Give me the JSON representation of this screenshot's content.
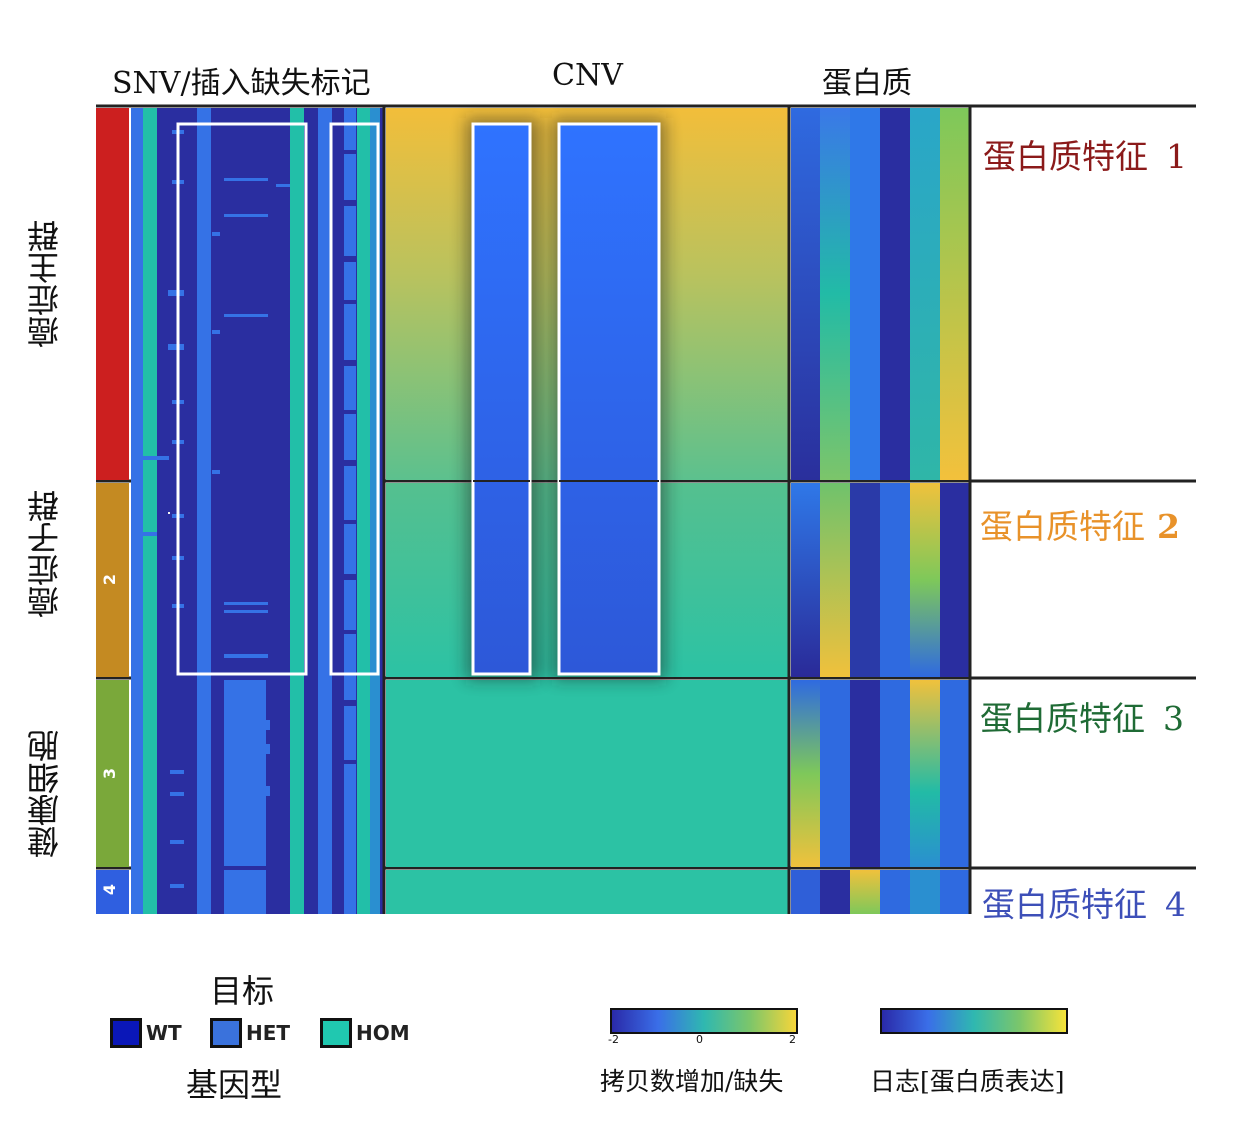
{
  "headers": {
    "snv": "SNV/插入缺失标记",
    "cnv": "CNV",
    "protein": "蛋白质"
  },
  "row_labels": {
    "main": "癌症主群",
    "sub": "癌症子群",
    "healthy": "健康细胞"
  },
  "groups": [
    {
      "number": "",
      "color": "#cc1f1f"
    },
    {
      "number": "2",
      "color": "#c48a22"
    },
    {
      "number": "3",
      "color": "#7aa83a"
    },
    {
      "number": "4",
      "color": "#2f5fe0"
    }
  ],
  "signatures": [
    {
      "prefix": "蛋白质特征",
      "num": "1",
      "color": "#8b1a1a"
    },
    {
      "prefix": "蛋白质特征",
      "num": "2",
      "color": "#e8922a"
    },
    {
      "prefix": "蛋白质特征",
      "num": "3",
      "color": "#1f6b35"
    },
    {
      "prefix": "蛋白质特征",
      "num": "4",
      "color": "#3d4fb8"
    }
  ],
  "legend": {
    "target": "目标",
    "genotype": "基因型",
    "items": [
      {
        "label": "WT",
        "color": "#0a17b8"
      },
      {
        "label": "HET",
        "color": "#3a72dc"
      },
      {
        "label": "HOM",
        "color": "#20c8b0"
      }
    ]
  },
  "colorbars": {
    "cnv": {
      "label": "拷贝数增加/缺失",
      "ticks": [
        "-2",
        "0",
        "2"
      ]
    },
    "protein": {
      "label": "日志[蛋白质表达]"
    }
  },
  "colors": {
    "wt": "#2a2ea0",
    "het": "#3572e6",
    "hom": "#22bfa8"
  }
}
